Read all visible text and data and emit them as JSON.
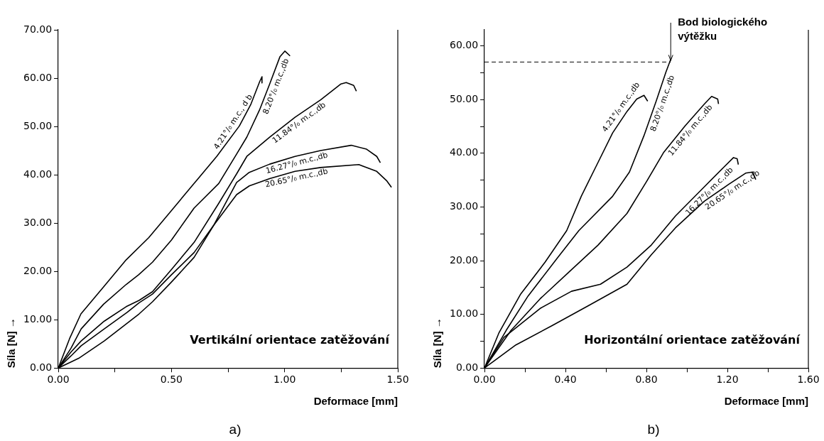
{
  "chart_data": [
    {
      "type": "line",
      "xlabel": "Deformace [mm]",
      "ylabel": "Síla [N] →",
      "xlim": [
        0,
        1.5
      ],
      "xticks": [
        {
          "value": 0,
          "label": "0.00"
        },
        {
          "value": 0.25,
          "label": null
        },
        {
          "value": 0.5,
          "label": "0.50"
        },
        {
          "value": 0.75,
          "label": null
        },
        {
          "value": 1,
          "label": "1.00"
        },
        {
          "value": 1.25,
          "label": null
        },
        {
          "value": 1.5,
          "label": "1.50"
        }
      ],
      "ylim": [
        0,
        70
      ],
      "yticks": [
        {
          "value": 0,
          "label": "0.00"
        },
        {
          "value": 10,
          "label": "10.00"
        },
        {
          "value": 20,
          "label": "20.00"
        },
        {
          "value": 30,
          "label": "30.00"
        },
        {
          "value": 40,
          "label": "40.00"
        },
        {
          "value": 50,
          "label": "50.00"
        },
        {
          "value": 60,
          "label": "60.00"
        },
        {
          "value": 70,
          "label": "70.00"
        }
      ],
      "legend": false,
      "annotations": [
        "Vertikální orientace zatěžování",
        "a)"
      ],
      "series": [
        {
          "name": "4.21°/₀ m.c., d b",
          "color": "#000000",
          "x": [
            0,
            0.05,
            0.1,
            0.2,
            0.3,
            0.4,
            0.5,
            0.6,
            0.7,
            0.8,
            0.85,
            0.89,
            0.9,
            0.9
          ],
          "values": [
            0,
            6.1,
            11.2,
            16.8,
            22.4,
            27,
            32.6,
            38.2,
            43.8,
            50.1,
            54.5,
            59.3,
            60.3,
            59
          ]
        },
        {
          "name": "8.20°/₀ m.c.,db",
          "color": "#000000",
          "x": [
            0,
            0.056,
            0.101,
            0.2,
            0.3,
            0.355,
            0.416,
            0.5,
            0.6,
            0.709,
            0.788,
            0.833,
            0.889,
            0.934,
            0.979,
            1.001,
            1.024
          ],
          "values": [
            0,
            4.1,
            8.1,
            13.2,
            17.3,
            19.3,
            21.9,
            26.5,
            33.1,
            38.2,
            44.3,
            47.8,
            53.4,
            58.8,
            64.4,
            65.6,
            64.6
          ]
        },
        {
          "name": "11.84°/₀ m.c.,db",
          "color": "#000000",
          "x": [
            0,
            0.056,
            0.101,
            0.203,
            0.3,
            0.357,
            0.416,
            0.5,
            0.6,
            0.709,
            0.788,
            0.833,
            0.934,
            1.046,
            1.159,
            1.249,
            1.272,
            1.305,
            1.317
          ],
          "values": [
            0,
            3.3,
            5.6,
            9.7,
            12.7,
            14,
            15.8,
            20.4,
            26,
            34.1,
            40.2,
            43.8,
            47.8,
            51.9,
            55.5,
            58.8,
            59.1,
            58.5,
            57.3
          ]
        },
        {
          "name": "16.27°/₀ m.c.,db",
          "color": "#000000",
          "x": [
            0,
            0.056,
            0.101,
            0.203,
            0.304,
            0.357,
            0.416,
            0.5,
            0.6,
            0.686,
            0.788,
            0.844,
            0.934,
            1.046,
            1.159,
            1.294,
            1.362,
            1.407,
            1.423
          ],
          "values": [
            0,
            2.5,
            4.6,
            8.1,
            11.5,
            13.5,
            15.3,
            19.3,
            23.9,
            29.5,
            38.4,
            40.5,
            42.2,
            43.8,
            45,
            46.1,
            45.3,
            43.8,
            42.5
          ]
        },
        {
          "name": "20.65°/₀ m.c.,db",
          "color": "#000000",
          "x": [
            0,
            0.09,
            0.203,
            0.357,
            0.416,
            0.5,
            0.6,
            0.686,
            0.788,
            0.844,
            0.934,
            1.046,
            1.159,
            1.328,
            1.407,
            1.452,
            1.472
          ],
          "values": [
            0,
            2,
            5.6,
            11.2,
            13.7,
            17.8,
            22.9,
            29.5,
            35.9,
            37.7,
            39.2,
            40.7,
            41.5,
            42.1,
            40.7,
            38.7,
            37.4
          ]
        }
      ]
    },
    {
      "type": "line",
      "xlabel": "Deformace [mm]",
      "ylabel": "Síla [N] →",
      "xlim": [
        0,
        1.6
      ],
      "xticks": [
        {
          "value": 0,
          "label": "0.00"
        },
        {
          "value": 0.2,
          "label": null
        },
        {
          "value": 0.4,
          "label": "0.40"
        },
        {
          "value": 0.6,
          "label": null
        },
        {
          "value": 0.8,
          "label": "0.80"
        },
        {
          "value": 1,
          "label": null
        },
        {
          "value": 1.2,
          "label": "1.20"
        },
        {
          "value": 1.4,
          "label": null
        },
        {
          "value": 1.6,
          "label": "1.60"
        }
      ],
      "ylim": [
        0,
        63
      ],
      "yticks": [
        {
          "value": 0,
          "label": "0.00"
        },
        {
          "value": 5,
          "label": null
        },
        {
          "value": 10,
          "label": "10.00"
        },
        {
          "value": 15,
          "label": null
        },
        {
          "value": 20,
          "label": "20.00"
        },
        {
          "value": 25,
          "label": null
        },
        {
          "value": 30,
          "label": "30.00"
        },
        {
          "value": 35,
          "label": null
        },
        {
          "value": 40,
          "label": "40.00"
        },
        {
          "value": 45,
          "label": null
        },
        {
          "value": 50,
          "label": "50.00"
        },
        {
          "value": 55,
          "label": null
        },
        {
          "value": 60,
          "label": "60.00"
        }
      ],
      "legend": false,
      "annotations": [
        {
          "text": "Bod biologického výtěžku",
          "x": 0.92,
          "y": 57
        },
        "Horizontální orientace zatěžování",
        "b)"
      ],
      "ref_lines": [
        {
          "axis": "y",
          "value": 57,
          "line_style": "dashed",
          "color": "#000000"
        }
      ],
      "series": [
        {
          "name": "4.21°/₀ m.c.,db",
          "color": "#000000",
          "x": [
            0,
            0.072,
            0.179,
            0.299,
            0.406,
            0.478,
            0.549,
            0.633,
            0.704,
            0.752,
            0.788,
            0.806
          ],
          "values": [
            0,
            6.6,
            13.8,
            19.7,
            25.6,
            32,
            37.4,
            43.8,
            47.8,
            50.1,
            50.8,
            49.7
          ]
        },
        {
          "name": "8.20°/₀ m.c.,db",
          "color": "#000000",
          "x": [
            0,
            0.107,
            0.215,
            0.358,
            0.466,
            0.633,
            0.716,
            0.788,
            0.848,
            0.896,
            0.919
          ],
          "values": [
            0,
            7,
            13.4,
            20.4,
            25.6,
            32,
            36.5,
            43.3,
            49.7,
            55.1,
            57.4
          ]
        },
        {
          "name": "11.84°/₀ m.c.,db",
          "color": "#000000",
          "x": [
            0,
            0.131,
            0.275,
            0.418,
            0.561,
            0.704,
            0.8,
            0.884,
            0.991,
            1.087,
            1.122,
            1.152,
            1.156
          ],
          "values": [
            0,
            7,
            12.9,
            17.9,
            22.9,
            28.8,
            34.7,
            40.1,
            45.1,
            49.2,
            50.6,
            50.1,
            49.2
          ]
        },
        {
          "name": "16.27°/₀ m.c.,db",
          "color": "#000000",
          "x": [
            0,
            0.096,
            0.275,
            0.43,
            0.573,
            0.704,
            0.824,
            0.943,
            1.087,
            1.182,
            1.23,
            1.248,
            1.254
          ],
          "values": [
            0,
            5.7,
            11.1,
            14.3,
            15.6,
            18.8,
            22.9,
            28.3,
            33.8,
            37.4,
            39.2,
            39,
            37.9
          ]
        },
        {
          "name": "20.65°/₀ m.c.,db",
          "color": "#000000",
          "x": [
            0,
            0.155,
            0.334,
            0.513,
            0.704,
            0.824,
            0.943,
            1.087,
            1.206,
            1.29,
            1.325,
            1.34
          ],
          "values": [
            0,
            4.3,
            7.9,
            11.6,
            15.6,
            21.1,
            26.1,
            31.1,
            34.2,
            36.3,
            36.5,
            35.1
          ]
        }
      ]
    }
  ]
}
